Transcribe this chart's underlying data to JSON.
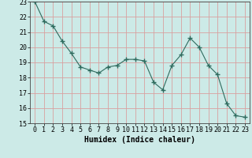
{
  "x": [
    0,
    1,
    2,
    3,
    4,
    5,
    6,
    7,
    8,
    9,
    10,
    11,
    12,
    13,
    14,
    15,
    16,
    17,
    18,
    19,
    20,
    21,
    22,
    23
  ],
  "y": [
    23.0,
    21.7,
    21.4,
    20.4,
    19.6,
    18.7,
    18.5,
    18.3,
    18.7,
    18.8,
    19.2,
    19.2,
    19.1,
    17.7,
    17.2,
    18.8,
    19.5,
    20.6,
    20.0,
    18.8,
    18.2,
    16.3,
    15.5,
    15.4
  ],
  "xlim": [
    -0.5,
    23.5
  ],
  "ylim": [
    15,
    23
  ],
  "yticks": [
    15,
    16,
    17,
    18,
    19,
    20,
    21,
    22,
    23
  ],
  "xticks": [
    0,
    1,
    2,
    3,
    4,
    5,
    6,
    7,
    8,
    9,
    10,
    11,
    12,
    13,
    14,
    15,
    16,
    17,
    18,
    19,
    20,
    21,
    22,
    23
  ],
  "xlabel": "Humidex (Indice chaleur)",
  "line_color": "#2e6b5e",
  "marker": "+",
  "marker_size": 4,
  "bg_color": "#cceae7",
  "grid_color": "#d9a0a0",
  "tick_fontsize": 6,
  "xlabel_fontsize": 7
}
